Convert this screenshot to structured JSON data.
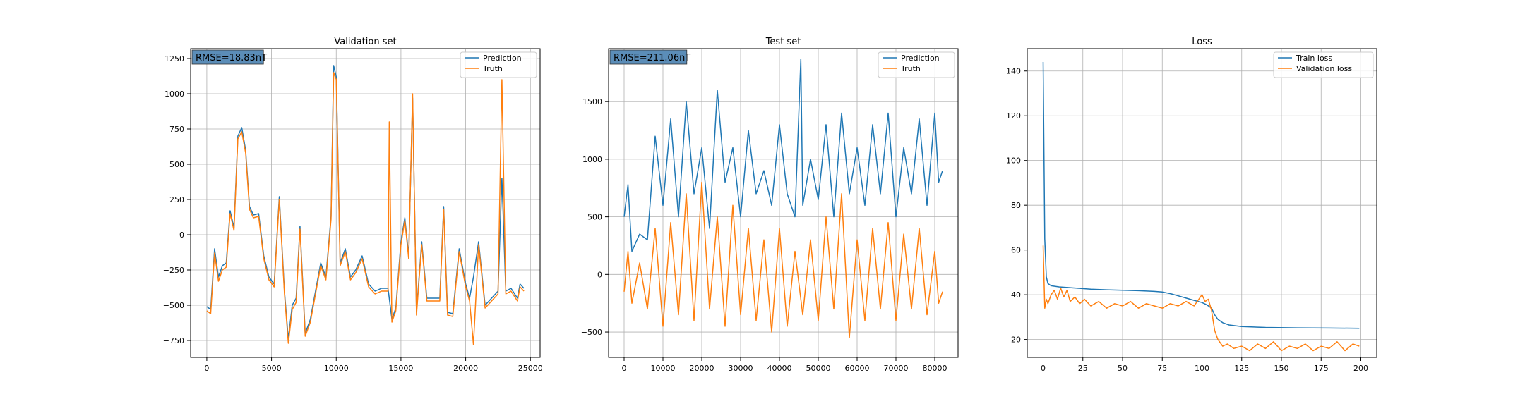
{
  "figure": {
    "background": "#ffffff"
  },
  "chart_data": [
    {
      "type": "line",
      "title": "Validation set",
      "xlabel": "",
      "ylabel": "",
      "xlim": [
        -1250,
        25750
      ],
      "ylim": [
        -870,
        1320
      ],
      "xticks": [
        0,
        5000,
        10000,
        15000,
        20000,
        25000
      ],
      "xtick_labels": [
        "0",
        "5000",
        "10000",
        "15000",
        "20000",
        "25000"
      ],
      "yticks": [
        -750,
        -500,
        -250,
        0,
        250,
        500,
        750,
        1000,
        1250
      ],
      "ytick_labels": [
        "−750",
        "−500",
        "−250",
        "0",
        "250",
        "500",
        "750",
        "1000",
        "1250"
      ],
      "grid": true,
      "legend_position": "upper-right",
      "annotation": {
        "text": "RMSE=18.83nT",
        "position": "upper-left",
        "color": "#5b8db8"
      },
      "series": [
        {
          "name": "Prediction",
          "color": "#1f77b4",
          "x": [
            0,
            300,
            600,
            900,
            1200,
            1500,
            1800,
            2100,
            2400,
            2700,
            3000,
            3300,
            3600,
            4000,
            4400,
            4800,
            5200,
            5600,
            6000,
            6300,
            6600,
            6900,
            7200,
            7600,
            8000,
            8400,
            8800,
            9200,
            9600,
            9800,
            10000,
            10300,
            10700,
            11100,
            11500,
            12000,
            12500,
            13000,
            13500,
            14000,
            14300,
            14600,
            15000,
            15300,
            15600,
            15900,
            16200,
            16600,
            17000,
            17500,
            18000,
            18300,
            18600,
            19000,
            19500,
            20000,
            20300,
            20600,
            21000,
            21500,
            22000,
            22500,
            22800,
            23100,
            23500,
            24000,
            24200,
            24500
          ],
          "y": [
            -510,
            -530,
            -100,
            -300,
            -220,
            -200,
            170,
            50,
            700,
            760,
            600,
            200,
            140,
            150,
            -150,
            -300,
            -350,
            270,
            -400,
            -740,
            -500,
            -450,
            60,
            -700,
            -600,
            -400,
            -200,
            -300,
            130,
            1200,
            1120,
            -200,
            -100,
            -300,
            -250,
            -150,
            -350,
            -400,
            -380,
            -380,
            -600,
            -520,
            -50,
            120,
            -150,
            970,
            -550,
            -50,
            -450,
            -450,
            -450,
            200,
            -550,
            -560,
            -100,
            -350,
            -450,
            -300,
            -50,
            -500,
            -450,
            -400,
            400,
            -400,
            -380,
            -450,
            -350,
            -380
          ]
        },
        {
          "name": "Truth",
          "color": "#ff7f0e",
          "x": [
            0,
            300,
            600,
            900,
            1200,
            1500,
            1800,
            2100,
            2400,
            2700,
            3000,
            3300,
            3600,
            4000,
            4400,
            4800,
            5200,
            5600,
            6000,
            6300,
            6600,
            6900,
            7200,
            7600,
            8000,
            8400,
            8800,
            9200,
            9600,
            9800,
            10000,
            10300,
            10700,
            11100,
            11500,
            12000,
            12500,
            13000,
            13500,
            14000,
            14100,
            14300,
            14600,
            15000,
            15300,
            15600,
            15900,
            16200,
            16600,
            17000,
            17500,
            18000,
            18300,
            18600,
            19000,
            19500,
            20000,
            20300,
            20600,
            21000,
            21500,
            22000,
            22500,
            22800,
            23100,
            23500,
            24000,
            24200,
            24500
          ],
          "y": [
            -540,
            -560,
            -130,
            -330,
            -250,
            -230,
            150,
            30,
            680,
            730,
            580,
            180,
            120,
            130,
            -170,
            -320,
            -370,
            250,
            -420,
            -770,
            -530,
            -480,
            40,
            -720,
            -620,
            -420,
            -220,
            -320,
            110,
            1150,
            1100,
            -220,
            -120,
            -320,
            -270,
            -170,
            -370,
            -420,
            -400,
            -400,
            800,
            -620,
            -540,
            -70,
            100,
            -170,
            1000,
            -570,
            -70,
            -470,
            -470,
            -470,
            180,
            -570,
            -580,
            -120,
            -370,
            -470,
            -780,
            -70,
            -520,
            -470,
            -420,
            1100,
            -420,
            -400,
            -470,
            -370,
            -400
          ]
        }
      ]
    },
    {
      "type": "line",
      "title": "Test set",
      "xlabel": "",
      "ylabel": "",
      "xlim": [
        -4000,
        86000
      ],
      "ylim": [
        -720,
        1960
      ],
      "xticks": [
        0,
        10000,
        20000,
        30000,
        40000,
        50000,
        60000,
        70000,
        80000
      ],
      "xtick_labels": [
        "0",
        "10000",
        "20000",
        "30000",
        "40000",
        "50000",
        "60000",
        "70000",
        "80000"
      ],
      "yticks": [
        -500,
        0,
        500,
        1000,
        1500
      ],
      "ytick_labels": [
        "−500",
        "0",
        "500",
        "1000",
        "1500"
      ],
      "grid": true,
      "legend_position": "upper-right",
      "annotation": {
        "text": "RMSE=211.06nT",
        "position": "upper-left",
        "color": "#5b8db8"
      },
      "series": [
        {
          "name": "Prediction",
          "color": "#1f77b4",
          "x": [
            0,
            1000,
            2000,
            4000,
            6000,
            8000,
            10000,
            12000,
            14000,
            16000,
            18000,
            20000,
            22000,
            24000,
            26000,
            28000,
            30000,
            32000,
            34000,
            36000,
            38000,
            40000,
            42000,
            44000,
            45500,
            46000,
            48000,
            50000,
            52000,
            54000,
            56000,
            58000,
            60000,
            62000,
            64000,
            66000,
            68000,
            70000,
            72000,
            74000,
            76000,
            78000,
            80000,
            81000,
            82000
          ],
          "y": [
            500,
            780,
            200,
            350,
            300,
            1200,
            600,
            1350,
            500,
            1500,
            700,
            1100,
            400,
            1600,
            800,
            1100,
            500,
            1250,
            700,
            900,
            600,
            1300,
            700,
            500,
            1870,
            600,
            1000,
            650,
            1300,
            500,
            1400,
            700,
            1100,
            600,
            1300,
            700,
            1400,
            500,
            1100,
            700,
            1350,
            600,
            1400,
            800,
            900
          ]
        },
        {
          "name": "Truth",
          "color": "#ff7f0e",
          "x": [
            0,
            1000,
            2000,
            4000,
            6000,
            8000,
            10000,
            12000,
            14000,
            16000,
            18000,
            20000,
            22000,
            24000,
            26000,
            28000,
            30000,
            32000,
            34000,
            36000,
            38000,
            40000,
            42000,
            44000,
            46000,
            48000,
            50000,
            52000,
            54000,
            56000,
            58000,
            60000,
            62000,
            64000,
            66000,
            68000,
            70000,
            72000,
            74000,
            76000,
            78000,
            80000,
            81000,
            82000
          ],
          "y": [
            -150,
            200,
            -250,
            100,
            -300,
            400,
            -450,
            450,
            -350,
            700,
            -400,
            800,
            -300,
            500,
            -450,
            600,
            -350,
            400,
            -400,
            300,
            -500,
            400,
            -450,
            200,
            -350,
            300,
            -400,
            500,
            -300,
            700,
            -550,
            300,
            -400,
            400,
            -300,
            450,
            -400,
            350,
            -300,
            400,
            -350,
            200,
            -250,
            -150
          ]
        }
      ]
    },
    {
      "type": "line",
      "title": "Loss",
      "xlabel": "",
      "ylabel": "",
      "xlim": [
        -10,
        210
      ],
      "ylim": [
        12,
        150
      ],
      "xticks": [
        0,
        25,
        50,
        75,
        100,
        125,
        150,
        175,
        200
      ],
      "xtick_labels": [
        "0",
        "25",
        "50",
        "75",
        "100",
        "125",
        "150",
        "175",
        "200"
      ],
      "yticks": [
        20,
        40,
        60,
        80,
        100,
        120,
        140
      ],
      "ytick_labels": [
        "20",
        "40",
        "60",
        "80",
        "100",
        "120",
        "140"
      ],
      "grid": true,
      "legend_position": "upper-right",
      "series": [
        {
          "name": "Train loss",
          "color": "#1f77b4",
          "x": [
            0,
            1,
            2,
            3,
            5,
            10,
            20,
            30,
            40,
            50,
            60,
            70,
            75,
            80,
            85,
            90,
            95,
            100,
            103,
            106,
            108,
            110,
            113,
            117,
            125,
            140,
            160,
            180,
            199
          ],
          "y": [
            144,
            65,
            48,
            45,
            44,
            43.5,
            43,
            42.5,
            42.2,
            42,
            41.8,
            41.5,
            41.2,
            40.5,
            39.5,
            38.5,
            37.5,
            36.5,
            35.5,
            34,
            31,
            29,
            27.5,
            26.5,
            25.8,
            25.4,
            25.2,
            25.1,
            25
          ]
        },
        {
          "name": "Validation loss",
          "color": "#ff7f0e",
          "x": [
            0,
            1,
            2,
            3,
            5,
            7,
            9,
            11,
            13,
            15,
            17,
            20,
            23,
            26,
            30,
            35,
            40,
            45,
            50,
            55,
            60,
            65,
            70,
            75,
            80,
            85,
            90,
            95,
            98,
            100,
            102,
            104,
            106,
            108,
            110,
            113,
            116,
            120,
            125,
            130,
            135,
            140,
            145,
            150,
            155,
            160,
            165,
            170,
            175,
            180,
            185,
            190,
            195,
            199
          ],
          "y": [
            62,
            34,
            38,
            36,
            40,
            42,
            38,
            43,
            39,
            42,
            37,
            39,
            36,
            38,
            35,
            37,
            34,
            36,
            35,
            37,
            34,
            36,
            35,
            34,
            36,
            35,
            37,
            35,
            38,
            40,
            37,
            38,
            33,
            24,
            20,
            17,
            18,
            16,
            17,
            15,
            18,
            16,
            19,
            15,
            17,
            16,
            18,
            15,
            17,
            16,
            19,
            15,
            18,
            17
          ]
        }
      ]
    }
  ]
}
